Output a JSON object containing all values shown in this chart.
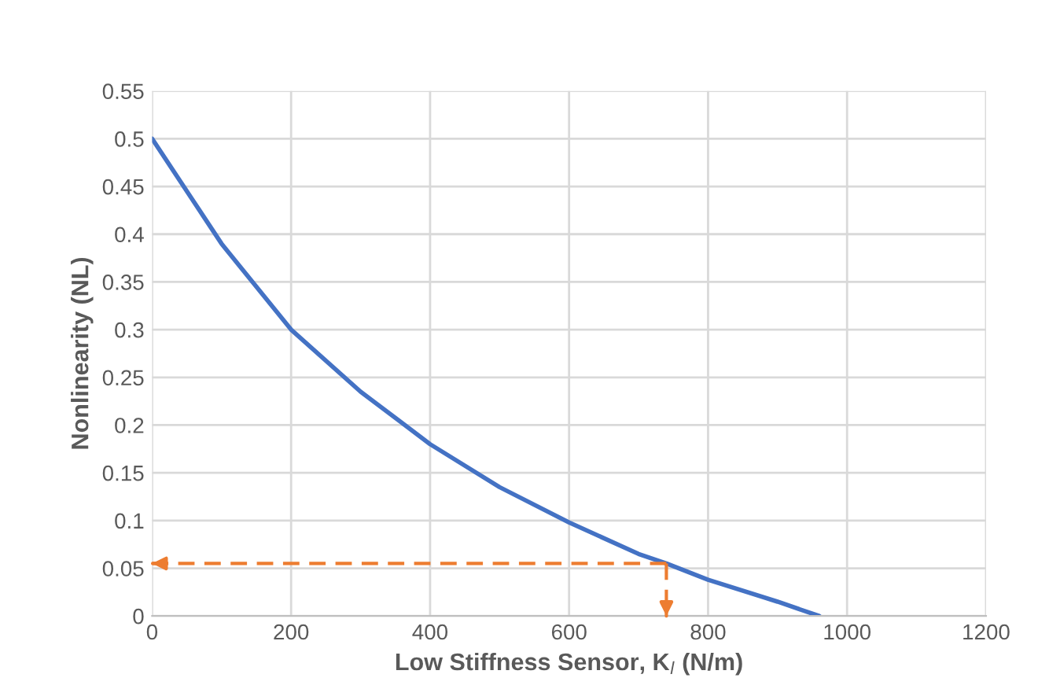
{
  "chart_data": {
    "type": "line",
    "xlabel": "Low Stiffness Sensor, K$_{l}$ (N/m)",
    "ylabel": "Nonlinearity (NL)",
    "xlim": [
      0,
      1200
    ],
    "xticks": [
      0,
      200,
      400,
      600,
      800,
      1000,
      1200
    ],
    "ylim": [
      0,
      0.55
    ],
    "yticks": [
      0,
      0.05,
      0.1,
      0.15,
      0.2,
      0.25,
      0.3,
      0.35,
      0.4,
      0.45,
      0.5,
      0.55
    ],
    "grid": true,
    "marker": "none",
    "series": [
      {
        "color": "#4472c4",
        "line_style": "solid",
        "x": [
          0,
          100,
          200,
          300,
          400,
          500,
          600,
          700,
          740,
          800,
          900,
          960
        ],
        "values": [
          0.5,
          0.39,
          0.3,
          0.235,
          0.18,
          0.135,
          0.098,
          0.065,
          0.055,
          0.038,
          0.015,
          0
        ]
      },
      {
        "color": "#ed7d31",
        "line_style": "dashed",
        "x": [
          740,
          740
        ],
        "values": [
          0.055,
          0
        ]
      },
      {
        "color": "#ed7d31",
        "line_style": "dashed",
        "x": [
          740,
          0
        ],
        "values": [
          0.055,
          0.055
        ]
      }
    ]
  }
}
